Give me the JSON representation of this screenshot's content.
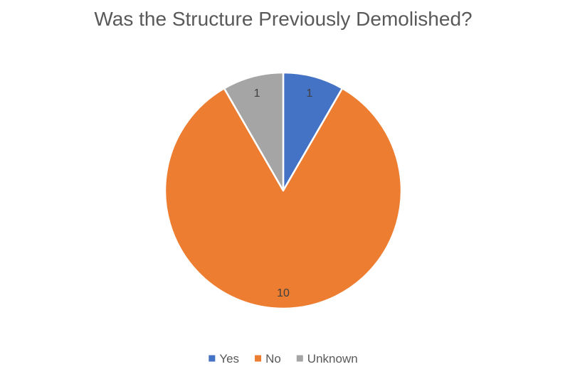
{
  "chart_data": {
    "type": "pie",
    "title": "Was the Structure Previously Demolished?",
    "categories": [
      "Yes",
      "No",
      "Unknown"
    ],
    "values": [
      1,
      10,
      1
    ],
    "data_labels": [
      "1",
      "10",
      "1"
    ],
    "colors": [
      "#4472C4",
      "#ED7D31",
      "#A5A5A5"
    ],
    "start_angle": "12 o'clock",
    "direction": "clockwise",
    "legend_position": "bottom"
  }
}
